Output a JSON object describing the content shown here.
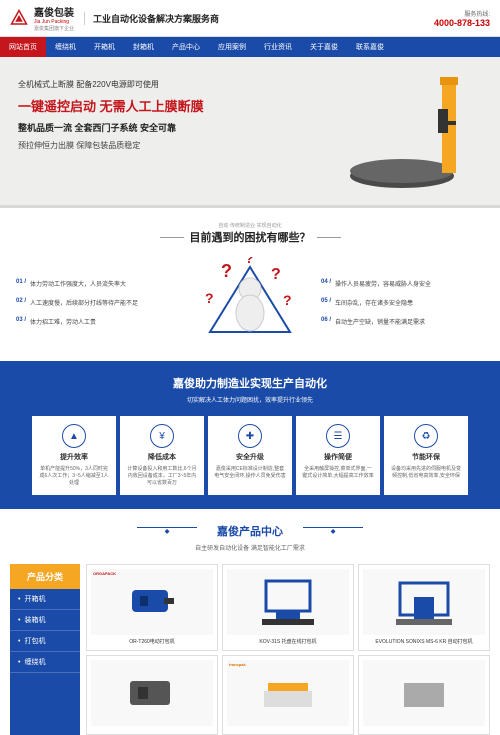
{
  "header": {
    "logo_cn": "嘉俊包装",
    "logo_en": "Jia Jun Packing",
    "logo_sub": "嘉俊集团旗下企业",
    "slogan": "工业自动化设备解决方案服务商",
    "phone_label": "服务热线:",
    "phone": "4000-878-133"
  },
  "nav": {
    "items": [
      "网站首页",
      "缠绕机",
      "开箱机",
      "封箱机",
      "产品中心",
      "应用案例",
      "行业资讯",
      "关于嘉俊",
      "联系嘉俊"
    ],
    "active": 0
  },
  "hero": {
    "l1": "全机械式上断膜  配备220V电源即可使用",
    "l2": "一键遥控启动 无需人工上膜断膜",
    "l3": "整机品质一流 全套西门子系统 安全可靠",
    "l4": "预拉伸恒力出膜  保障包装品质稳定",
    "machine_color": "#f5a623",
    "platform_color": "#4a4a4a"
  },
  "challenges": {
    "sub": "自动·传统制造业·实现自动化",
    "title": "目前遇到的困扰有哪些？",
    "left": [
      {
        "num": "01",
        "text": "体力劳动工作强度大，人员流失率大"
      },
      {
        "num": "02",
        "text": "人工速度慢，后续部分打线等待产能不足"
      },
      {
        "num": "03",
        "text": "体力招工难，劳动人工贵"
      }
    ],
    "right": [
      {
        "num": "04",
        "text": "操作人员易疲劳，容易威胁人身安全"
      },
      {
        "num": "05",
        "text": "车间杂乱，存在诸多安全隐患"
      },
      {
        "num": "06",
        "text": "自动生产空缺，销量不能满足需求"
      }
    ]
  },
  "advantages": {
    "title": "嘉俊助力制造业实现生产自动化",
    "sub": "切实解决人工体力问题困扰，效率提升行业领先",
    "items": [
      {
        "name": "提升效率",
        "desc": "单机产能提升50%，3人同时完成6人次工作；3~5人缩减至1人处理"
      },
      {
        "name": "降低成本",
        "desc": "计算设备投入和用工数比,6个月内收回设备成本，工厂3~5年内可以省数百万"
      },
      {
        "name": "安全升级",
        "desc": "嘉俊采用CE标准设计制造,整套电气安全闭环,操作人员免受伤害"
      },
      {
        "name": "操作简便",
        "desc": "全采用触屏操控,菜单式界面,一键式设计简单,大幅提高工作效率"
      },
      {
        "name": "节能环保",
        "desc": "设备均采用先进的伺服电机及变频控制,低省电高效率,安全环保"
      }
    ]
  },
  "products": {
    "title": "嘉俊产品中心",
    "sub": "自主研发自动化设备  满足智能化工厂需求",
    "side_title": "产品分类",
    "cats": [
      "开箱机",
      "装箱机",
      "打包机",
      "缠绕机"
    ],
    "items": [
      {
        "name": "OR-T260电动打包机",
        "brand": "ORGAPACK",
        "brand_color": "#c4161c",
        "color": "#1b4ba8"
      },
      {
        "name": "KOV-31S 托盘在线打包机",
        "brand": "",
        "color": "#1b4ba8"
      },
      {
        "name": "EVOLUTION SONIXS MS-6 KR 自动打包机",
        "brand": "",
        "color": "#1b4ba8"
      },
      {
        "name": "",
        "brand": "",
        "color": "#666"
      },
      {
        "name": "",
        "brand": "transpak",
        "brand_color": "#d97706",
        "color": "#f5a623"
      },
      {
        "name": "",
        "brand": "",
        "color": "#888"
      }
    ]
  },
  "colors": {
    "primary": "#1b4ba8",
    "accent": "#c4161c",
    "orange": "#f5a623"
  }
}
